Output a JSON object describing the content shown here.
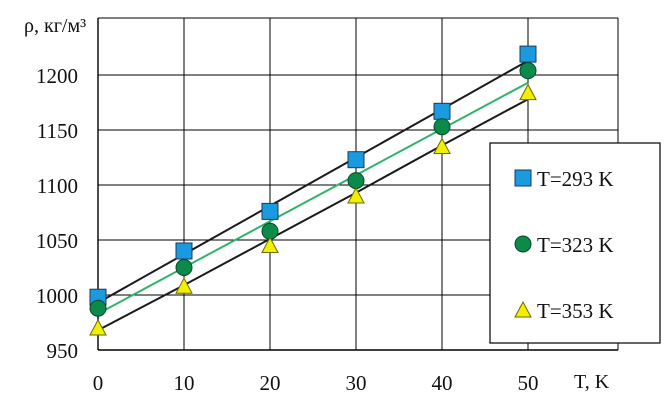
{
  "chart_data": {
    "type": "scatter",
    "title": "",
    "xlabel": "T, K",
    "ylabel": "ρ, кг/м³",
    "xlim": [
      0,
      50
    ],
    "ylim": [
      950,
      1250
    ],
    "x_ticks": [
      "0",
      "10",
      "20",
      "30",
      "40",
      "50"
    ],
    "y_ticks": [
      "950",
      "1000",
      "1050",
      "1100",
      "1150",
      "1200"
    ],
    "grid": true,
    "legend_position": "right",
    "x": [
      0,
      10,
      20,
      30,
      40,
      50
    ],
    "series": [
      {
        "name": "T=293 K",
        "values": [
          998,
          1040,
          1076,
          1123,
          1167,
          1219
        ],
        "marker": "square",
        "color": "#1a9be0",
        "trend": [
          993,
          1037,
          1081,
          1125,
          1169,
          1213
        ],
        "trend_color": "#1a1a1a"
      },
      {
        "name": "T=323 K",
        "values": [
          988,
          1025,
          1058,
          1104,
          1153,
          1204
        ],
        "marker": "circle",
        "color": "#0b8a4a",
        "trend": [
          983,
          1025,
          1067,
          1109,
          1151,
          1193
        ],
        "trend_color": "#2fb36a"
      },
      {
        "name": "T=353 K",
        "values": [
          970,
          1008,
          1045,
          1090,
          1135,
          1184
        ],
        "marker": "triangle",
        "color": "#f2f000",
        "trend": [
          968,
          1009,
          1051,
          1093,
          1136,
          1178
        ],
        "trend_color": "#1a1a1a"
      }
    ]
  }
}
